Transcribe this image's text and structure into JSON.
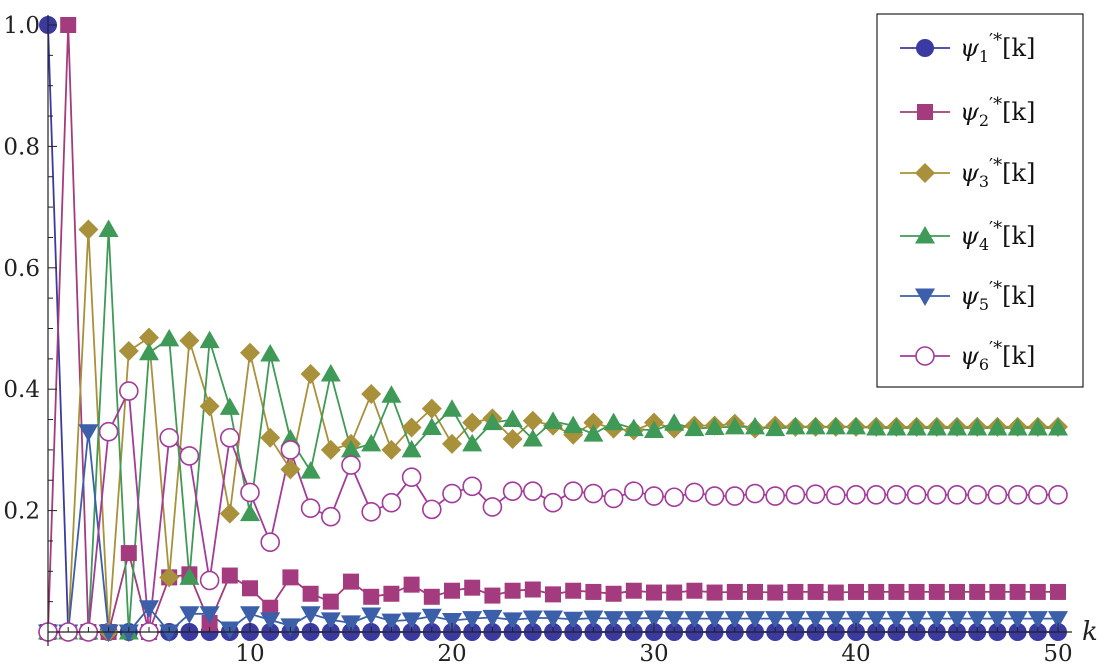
{
  "chart_data": {
    "type": "line",
    "title": "",
    "xlabel": "k",
    "ylabel": "",
    "xlim": [
      0,
      50
    ],
    "ylim": [
      0,
      1.0
    ],
    "x_ticks": [
      10,
      20,
      30,
      40,
      50
    ],
    "x_tick_labels": [
      "10",
      "20",
      "30",
      "40",
      "50"
    ],
    "y_ticks": [
      0.2,
      0.4,
      0.6,
      0.8,
      1.0
    ],
    "y_tick_labels": [
      "0.2",
      "0.4",
      "0.6",
      "0.8",
      "1.0"
    ],
    "grid": false,
    "legend": {
      "placement": "top-right"
    },
    "series": [
      {
        "name": "ψ1'*[k]",
        "name_parts": {
          "base": "ψ",
          "sub": "1",
          "sup": "′*",
          "tail": "[k]"
        },
        "color": "#3b3aa0",
        "marker": "circle",
        "x": [
          0,
          1,
          2,
          3,
          4,
          5,
          6,
          7,
          8,
          9,
          10,
          11,
          12,
          13,
          14,
          15,
          16,
          17,
          18,
          19,
          20,
          21,
          22,
          23,
          24,
          25,
          26,
          27,
          28,
          29,
          30,
          31,
          32,
          33,
          34,
          35,
          36,
          37,
          38,
          39,
          40,
          41,
          42,
          43,
          44,
          45,
          46,
          47,
          48,
          49,
          50
        ],
        "y": [
          1.0,
          0,
          0,
          0,
          0,
          0,
          0,
          0,
          0,
          0,
          0,
          0,
          0,
          0,
          0,
          0,
          0,
          0,
          0,
          0,
          0,
          0,
          0,
          0,
          0,
          0,
          0,
          0,
          0,
          0,
          0,
          0,
          0,
          0,
          0,
          0,
          0,
          0,
          0,
          0,
          0,
          0,
          0,
          0,
          0,
          0,
          0,
          0,
          0,
          0,
          0
        ]
      },
      {
        "name": "ψ2'*[k]",
        "name_parts": {
          "base": "ψ",
          "sub": "2",
          "sup": "′*",
          "tail": "[k]"
        },
        "color": "#a33b7e",
        "marker": "square",
        "x": [
          0,
          1,
          2,
          3,
          4,
          5,
          6,
          7,
          8,
          9,
          10,
          11,
          12,
          13,
          14,
          15,
          16,
          17,
          18,
          19,
          20,
          21,
          22,
          23,
          24,
          25,
          26,
          27,
          28,
          29,
          30,
          31,
          32,
          33,
          34,
          35,
          36,
          37,
          38,
          39,
          40,
          41,
          42,
          43,
          44,
          45,
          46,
          47,
          48,
          49,
          50
        ],
        "y": [
          0,
          1.0,
          0,
          0,
          0.13,
          0,
          0.09,
          0.095,
          0.015,
          0.093,
          0.072,
          0.04,
          0.09,
          0.063,
          0.05,
          0.083,
          0.058,
          0.063,
          0.078,
          0.058,
          0.068,
          0.073,
          0.06,
          0.068,
          0.07,
          0.062,
          0.068,
          0.066,
          0.063,
          0.068,
          0.065,
          0.065,
          0.068,
          0.065,
          0.066,
          0.066,
          0.065,
          0.066,
          0.066,
          0.065,
          0.066,
          0.066,
          0.066,
          0.066,
          0.066,
          0.066,
          0.066,
          0.066,
          0.066,
          0.066,
          0.066
        ]
      },
      {
        "name": "ψ3'*[k]",
        "name_parts": {
          "base": "ψ",
          "sub": "3",
          "sup": "′*",
          "tail": "[k]"
        },
        "color": "#a8913a",
        "marker": "diamond",
        "x": [
          0,
          1,
          2,
          3,
          4,
          5,
          6,
          7,
          8,
          9,
          10,
          11,
          12,
          13,
          14,
          15,
          16,
          17,
          18,
          19,
          20,
          21,
          22,
          23,
          24,
          25,
          26,
          27,
          28,
          29,
          30,
          31,
          32,
          33,
          34,
          35,
          36,
          37,
          38,
          39,
          40,
          41,
          42,
          43,
          44,
          45,
          46,
          47,
          48,
          49,
          50
        ],
        "y": [
          0,
          0,
          0.663,
          0,
          0.463,
          0.485,
          0.09,
          0.48,
          0.372,
          0.195,
          0.46,
          0.32,
          0.268,
          0.425,
          0.3,
          0.31,
          0.392,
          0.3,
          0.337,
          0.368,
          0.31,
          0.345,
          0.352,
          0.318,
          0.348,
          0.34,
          0.325,
          0.345,
          0.335,
          0.332,
          0.345,
          0.335,
          0.34,
          0.34,
          0.343,
          0.335,
          0.34,
          0.338,
          0.338,
          0.338,
          0.338,
          0.338,
          0.338,
          0.338,
          0.338,
          0.338,
          0.338,
          0.338,
          0.338,
          0.338,
          0.338
        ]
      },
      {
        "name": "ψ4'*[k]",
        "name_parts": {
          "base": "ψ",
          "sub": "4",
          "sup": "′*",
          "tail": "[k]"
        },
        "color": "#3f9a57",
        "marker": "triangle-up",
        "x": [
          0,
          1,
          2,
          3,
          4,
          5,
          6,
          7,
          8,
          9,
          10,
          11,
          12,
          13,
          14,
          15,
          16,
          17,
          18,
          19,
          20,
          21,
          22,
          23,
          24,
          25,
          26,
          27,
          28,
          29,
          30,
          31,
          32,
          33,
          34,
          35,
          36,
          37,
          38,
          39,
          40,
          41,
          42,
          43,
          44,
          45,
          46,
          47,
          48,
          49,
          50
        ],
        "y": [
          0,
          0,
          0,
          0.663,
          0,
          0.46,
          0.483,
          0.09,
          0.48,
          0.37,
          0.195,
          0.458,
          0.318,
          0.265,
          0.425,
          0.3,
          0.31,
          0.39,
          0.3,
          0.337,
          0.367,
          0.31,
          0.345,
          0.35,
          0.318,
          0.347,
          0.34,
          0.326,
          0.345,
          0.335,
          0.332,
          0.344,
          0.335,
          0.337,
          0.338,
          0.338,
          0.335,
          0.338,
          0.338,
          0.338,
          0.338,
          0.336,
          0.336,
          0.336,
          0.336,
          0.336,
          0.336,
          0.336,
          0.336,
          0.336,
          0.336
        ]
      },
      {
        "name": "ψ5'*[k]",
        "name_parts": {
          "base": "ψ",
          "sub": "5",
          "sup": "′*",
          "tail": "[k]"
        },
        "color": "#3b5fa8",
        "marker": "triangle-down",
        "x": [
          0,
          1,
          2,
          3,
          4,
          5,
          6,
          7,
          8,
          9,
          10,
          11,
          12,
          13,
          14,
          15,
          16,
          17,
          18,
          19,
          20,
          21,
          22,
          23,
          24,
          25,
          26,
          27,
          28,
          29,
          30,
          31,
          32,
          33,
          34,
          35,
          36,
          37,
          38,
          39,
          40,
          41,
          42,
          43,
          44,
          45,
          46,
          47,
          48,
          49,
          50
        ],
        "y": [
          0,
          0,
          0.33,
          0,
          0,
          0.04,
          0,
          0.03,
          0.03,
          0.005,
          0.03,
          0.02,
          0.01,
          0.03,
          0.02,
          0.015,
          0.028,
          0.018,
          0.02,
          0.026,
          0.019,
          0.022,
          0.024,
          0.02,
          0.023,
          0.023,
          0.021,
          0.023,
          0.022,
          0.022,
          0.023,
          0.022,
          0.022,
          0.022,
          0.022,
          0.022,
          0.022,
          0.022,
          0.022,
          0.022,
          0.022,
          0.022,
          0.022,
          0.022,
          0.022,
          0.022,
          0.022,
          0.022,
          0.022,
          0.022,
          0.022
        ]
      },
      {
        "name": "ψ6'*[k]",
        "name_parts": {
          "base": "ψ",
          "sub": "6",
          "sup": "′*",
          "tail": "[k]"
        },
        "color": "#a33b9a",
        "marker": "open-circle",
        "x": [
          0,
          1,
          2,
          3,
          4,
          5,
          6,
          7,
          8,
          9,
          10,
          11,
          12,
          13,
          14,
          15,
          16,
          17,
          18,
          19,
          20,
          21,
          22,
          23,
          24,
          25,
          26,
          27,
          28,
          29,
          30,
          31,
          32,
          33,
          34,
          35,
          36,
          37,
          38,
          39,
          40,
          41,
          42,
          43,
          44,
          45,
          46,
          47,
          48,
          49,
          50
        ],
        "y": [
          0,
          0,
          0,
          0.33,
          0.397,
          0,
          0.32,
          0.29,
          0.085,
          0.32,
          0.23,
          0.148,
          0.3,
          0.204,
          0.19,
          0.275,
          0.198,
          0.213,
          0.255,
          0.202,
          0.228,
          0.24,
          0.206,
          0.232,
          0.232,
          0.213,
          0.232,
          0.228,
          0.22,
          0.232,
          0.224,
          0.222,
          0.23,
          0.224,
          0.224,
          0.228,
          0.224,
          0.226,
          0.227,
          0.225,
          0.226,
          0.226,
          0.226,
          0.226,
          0.226,
          0.226,
          0.226,
          0.226,
          0.226,
          0.226,
          0.226
        ]
      }
    ]
  }
}
